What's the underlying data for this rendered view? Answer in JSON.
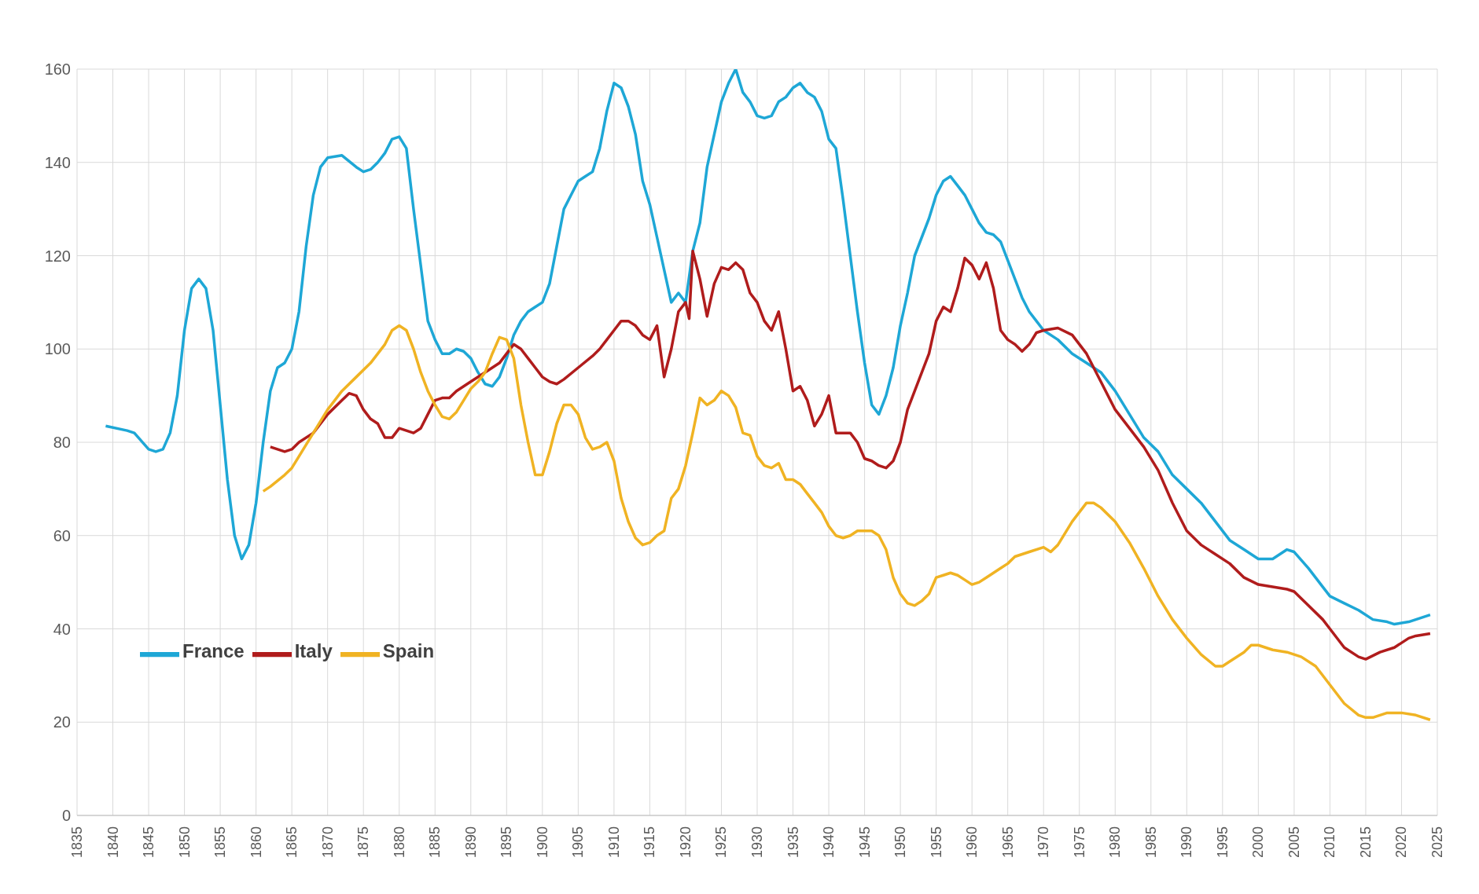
{
  "chart_data": {
    "type": "line",
    "xlim": [
      1835,
      2025
    ],
    "xticks": [
      1835,
      1840,
      1845,
      1850,
      1855,
      1860,
      1865,
      1870,
      1875,
      1880,
      1885,
      1890,
      1895,
      1900,
      1905,
      1910,
      1915,
      1920,
      1925,
      1930,
      1935,
      1940,
      1945,
      1950,
      1955,
      1960,
      1965,
      1970,
      1975,
      1980,
      1985,
      1990,
      1995,
      2000,
      2005,
      2010,
      2015,
      2020,
      2025
    ],
    "ylim": [
      0,
      160
    ],
    "yticks": [
      0,
      20,
      40,
      60,
      80,
      100,
      120,
      140,
      160
    ],
    "grid": true,
    "legend": "bottom left",
    "marker": "none",
    "line_style": "solid",
    "series": [
      {
        "name": "France",
        "color": "#1ea7d6",
        "x": [
          1839,
          1842,
          1843,
          1845,
          1846,
          1847,
          1848,
          1849,
          1850,
          1851,
          1852,
          1853,
          1854,
          1855,
          1856,
          1857,
          1858,
          1859,
          1860,
          1861,
          1862,
          1863,
          1864,
          1865,
          1866,
          1867,
          1868,
          1869,
          1870,
          1872,
          1874,
          1875,
          1876,
          1877,
          1878,
          1879,
          1880,
          1881,
          1882,
          1883,
          1884,
          1885,
          1886,
          1887,
          1888,
          1889,
          1890,
          1891,
          1892,
          1893,
          1894,
          1895,
          1896,
          1897,
          1898,
          1899,
          1900,
          1901,
          1902,
          1903,
          1904,
          1905,
          1906,
          1907,
          1908,
          1909,
          1910,
          1911,
          1912,
          1913,
          1914,
          1915,
          1916,
          1917,
          1918,
          1919,
          1920,
          1921,
          1922,
          1923,
          1924,
          1925,
          1926,
          1927,
          1928,
          1929,
          1930,
          1931,
          1932,
          1933,
          1934,
          1935,
          1936,
          1937,
          1938,
          1939,
          1940,
          1941,
          1942,
          1943,
          1944,
          1945,
          1946,
          1947,
          1948,
          1949,
          1950,
          1951,
          1952,
          1953,
          1954,
          1955,
          1956,
          1957,
          1958,
          1959,
          1960,
          1961,
          1962,
          1963,
          1964,
          1965,
          1966,
          1967,
          1968,
          1969,
          1970,
          1972,
          1974,
          1976,
          1978,
          1980,
          1982,
          1984,
          1986,
          1988,
          1990,
          1992,
          1994,
          1996,
          1998,
          2000,
          2002,
          2004,
          2005,
          2007,
          2009,
          2010,
          2012,
          2014,
          2016,
          2018,
          2019,
          2021,
          2022,
          2024
        ],
        "values": [
          83.5,
          82.5,
          82,
          78.5,
          78,
          78.5,
          82,
          90,
          104,
          113,
          115,
          113,
          104,
          88,
          72,
          60,
          55,
          58,
          67,
          80,
          91,
          96,
          97,
          100,
          108,
          122,
          133,
          139,
          141,
          141.5,
          139,
          138,
          138.5,
          140,
          142,
          145,
          145.5,
          143,
          130,
          118,
          106,
          102,
          99,
          99,
          100,
          99.5,
          98,
          95,
          92.5,
          92,
          94,
          98,
          103,
          106,
          108,
          109,
          110,
          114,
          122,
          130,
          133,
          136,
          137,
          138,
          143,
          151,
          157,
          156,
          152,
          146,
          136,
          131,
          124,
          117,
          110,
          112,
          110,
          121,
          127,
          139,
          146,
          153,
          157,
          160,
          155,
          153,
          150,
          149.5,
          150,
          153,
          154,
          156,
          157,
          155,
          154,
          151,
          145,
          143,
          132,
          120,
          108,
          97,
          88,
          86,
          90,
          96,
          105,
          112,
          120,
          124,
          128,
          133,
          136,
          137,
          135,
          133,
          130,
          127,
          125,
          124.5,
          123,
          119,
          115,
          111,
          108,
          106,
          104,
          102,
          99,
          97,
          95,
          91,
          86,
          81,
          78,
          73,
          70,
          67,
          63,
          59,
          57,
          55,
          55,
          57,
          56.5,
          53,
          49,
          47,
          45.5,
          44,
          42,
          41.5,
          41,
          41.5,
          42,
          43
        ]
      },
      {
        "name": "Italy",
        "color": "#b01c1c",
        "x": [
          1862,
          1863,
          1864,
          1865,
          1866,
          1868,
          1870,
          1872,
          1873,
          1874,
          1875,
          1876,
          1877,
          1878,
          1879,
          1880,
          1881,
          1882,
          1883,
          1884,
          1885,
          1886,
          1887,
          1888,
          1890,
          1892,
          1894,
          1895,
          1896,
          1897,
          1898,
          1899,
          1900,
          1901,
          1902,
          1903,
          1905,
          1907,
          1908,
          1909,
          1910,
          1911,
          1912,
          1913,
          1914,
          1915,
          1916,
          1917,
          1918,
          1919,
          1920,
          1920.5,
          1921,
          1922,
          1923,
          1924,
          1925,
          1926,
          1927,
          1928,
          1929,
          1930,
          1931,
          1932,
          1933,
          1934,
          1935,
          1936,
          1937,
          1938,
          1939,
          1940,
          1941,
          1942,
          1943,
          1944,
          1945,
          1946,
          1947,
          1948,
          1949,
          1950,
          1951,
          1952,
          1953,
          1954,
          1955,
          1956,
          1957,
          1958,
          1959,
          1960,
          1961,
          1962,
          1963,
          1964,
          1965,
          1966,
          1967,
          1968,
          1969,
          1970,
          1972,
          1974,
          1976,
          1978,
          1980,
          1982,
          1984,
          1986,
          1988,
          1990,
          1992,
          1994,
          1996,
          1998,
          2000,
          2002,
          2004,
          2005,
          2007,
          2009,
          2010,
          2012,
          2014,
          2015,
          2017,
          2019,
          2021,
          2022,
          2024
        ],
        "values": [
          79,
          78.5,
          78,
          78.5,
          80,
          82,
          86,
          89,
          90.5,
          90,
          87,
          85,
          84,
          81,
          81,
          83,
          82.5,
          82,
          83,
          86,
          89,
          89.5,
          89.5,
          91,
          93,
          95,
          97,
          99,
          101,
          100,
          98,
          96,
          94,
          93,
          92.5,
          93.5,
          96,
          98.5,
          100,
          102,
          104,
          106,
          106,
          105,
          103,
          102,
          105,
          94,
          100,
          108,
          110,
          106.5,
          121,
          115,
          107,
          114,
          117.5,
          117,
          118.5,
          117,
          112,
          110,
          106,
          104,
          108,
          100,
          91,
          92,
          89,
          83.5,
          86,
          90,
          82,
          82,
          82,
          80,
          76.5,
          76,
          75,
          74.5,
          76,
          80,
          87,
          91,
          95,
          99,
          106,
          109,
          108,
          113,
          119.5,
          118,
          115,
          118.5,
          113,
          104,
          102,
          101,
          99.5,
          101,
          103.5,
          104,
          104.5,
          103,
          99,
          93,
          87,
          83,
          79,
          74,
          67,
          61,
          58,
          56,
          54,
          51,
          49.5,
          49,
          48.5,
          48,
          45,
          42,
          40,
          36,
          34,
          33.5,
          35,
          36,
          38,
          38.5,
          39
        ]
      },
      {
        "name": "Spain",
        "color": "#f0b323",
        "x": [
          1861,
          1862,
          1864,
          1865,
          1866,
          1868,
          1870,
          1872,
          1874,
          1876,
          1878,
          1879,
          1880,
          1881,
          1882,
          1883,
          1884,
          1885,
          1886,
          1887,
          1888,
          1889,
          1890,
          1891,
          1892,
          1893,
          1894,
          1895,
          1896,
          1897,
          1898,
          1899,
          1900,
          1901,
          1902,
          1903,
          1904,
          1905,
          1906,
          1907,
          1908,
          1909,
          1910,
          1911,
          1912,
          1913,
          1914,
          1915,
          1916,
          1917,
          1918,
          1919,
          1920,
          1921,
          1922,
          1923,
          1924,
          1925,
          1926,
          1927,
          1928,
          1929,
          1930,
          1931,
          1932,
          1933,
          1934,
          1935,
          1936,
          1937,
          1938,
          1939,
          1940,
          1941,
          1942,
          1943,
          1944,
          1945,
          1946,
          1947,
          1948,
          1949,
          1950,
          1951,
          1952,
          1953,
          1954,
          1955,
          1956,
          1957,
          1958,
          1959,
          1960,
          1961,
          1962,
          1963,
          1964,
          1965,
          1966,
          1968,
          1970,
          1971,
          1972,
          1974,
          1976,
          1977,
          1978,
          1980,
          1982,
          1984,
          1986,
          1988,
          1990,
          1992,
          1994,
          1995,
          1996,
          1998,
          1999,
          2000,
          2002,
          2004,
          2006,
          2008,
          2010,
          2012,
          2014,
          2015,
          2016,
          2018,
          2020,
          2022,
          2024
        ],
        "values": [
          69.5,
          70.5,
          73,
          74.5,
          77,
          82,
          87,
          91,
          94,
          97,
          101,
          104,
          105,
          104,
          100,
          95,
          91,
          88,
          85.5,
          85,
          86.5,
          89,
          91.5,
          93,
          95,
          99,
          102.5,
          102,
          98,
          88,
          80,
          73,
          73,
          78,
          84,
          88,
          88,
          86,
          81,
          78.5,
          79,
          80,
          76,
          68,
          63,
          59.5,
          58,
          58.5,
          60,
          61,
          68,
          70,
          75,
          82,
          89.5,
          88,
          89,
          91,
          90,
          87.5,
          82,
          81.5,
          77,
          75,
          74.5,
          75.5,
          72,
          72,
          71,
          69,
          67,
          65,
          62,
          60,
          59.5,
          60,
          61,
          61,
          61,
          60,
          57,
          51,
          47.5,
          45.5,
          45,
          46,
          47.5,
          51,
          51.5,
          52,
          51.5,
          50.5,
          49.5,
          50,
          51,
          52,
          53,
          54,
          55.5,
          56.5,
          57.5,
          56.5,
          58,
          63,
          67,
          67,
          66,
          63,
          58.5,
          53,
          47,
          42,
          38,
          34.5,
          32,
          32,
          33,
          35,
          36.5,
          36.5,
          35.5,
          35,
          34,
          32,
          28,
          24,
          21.5,
          21,
          21,
          22,
          22,
          21.5,
          20.5
        ]
      }
    ]
  }
}
